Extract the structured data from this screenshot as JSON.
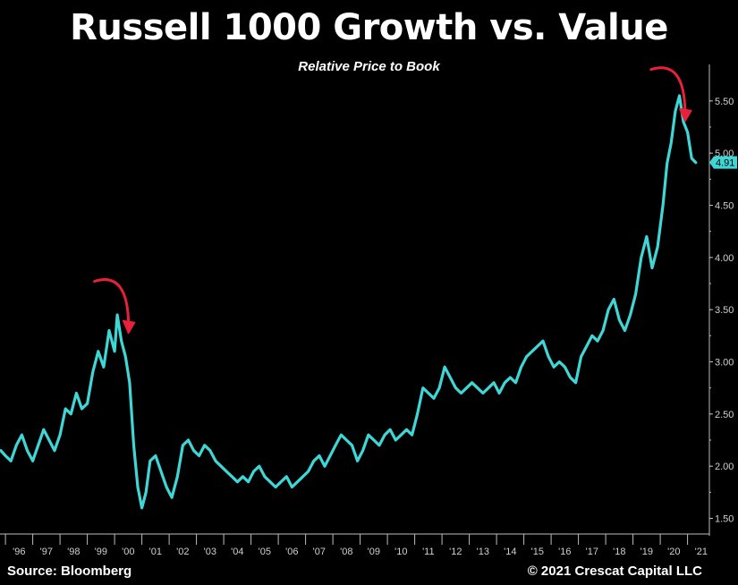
{
  "title": "Russell 1000 Growth vs. Value",
  "subtitle": "Relative Price to Book",
  "footer": {
    "source": "Source: Bloomberg",
    "copyright": "© 2021 Crescat Capital LLC"
  },
  "colors": {
    "background": "#000000",
    "series": "#3fd6d6",
    "arrow": "#e8203a",
    "text": "#ffffff",
    "axis": "#bdbdbd"
  },
  "chart_data": {
    "type": "line",
    "title": "Russell 1000 Growth vs. Value",
    "subtitle": "Relative Price to Book",
    "xlabel": "",
    "ylabel": "",
    "xlim": [
      1995.8,
      2021.8
    ],
    "ylim": [
      1.35,
      5.85
    ],
    "x_ticks": [
      "'96",
      "'97",
      "'98",
      "'99",
      "'00",
      "'01",
      "'02",
      "'03",
      "'04",
      "'05",
      "'06",
      "'07",
      "'08",
      "'09",
      "'10",
      "'11",
      "'12",
      "'13",
      "'14",
      "'15",
      "'16",
      "'17",
      "'18",
      "'19",
      "'20",
      "'21"
    ],
    "y_ticks": [
      "1.50",
      "2.00",
      "2.50",
      "3.00",
      "3.50",
      "4.00",
      "4.50",
      "5.00",
      "5.50"
    ],
    "y_axis_side": "right",
    "grid": false,
    "last_value_label": "4.91",
    "series": [
      {
        "x": [
          1995.83,
          1996.0,
          1996.2,
          1996.4,
          1996.6,
          1996.8,
          1997.0,
          1997.2,
          1997.4,
          1997.6,
          1997.8,
          1998.0,
          1998.2,
          1998.4,
          1998.6,
          1998.8,
          1999.0,
          1999.2,
          1999.4,
          1999.6,
          1999.8,
          2000.0,
          2000.1,
          2000.25,
          2000.4,
          2000.55,
          2000.7,
          2000.85,
          2001.0,
          2001.15,
          2001.3,
          2001.5,
          2001.7,
          2001.9,
          2002.1,
          2002.3,
          2002.5,
          2002.7,
          2002.9,
          2003.1,
          2003.3,
          2003.5,
          2003.7,
          2003.9,
          2004.1,
          2004.3,
          2004.5,
          2004.7,
          2004.9,
          2005.1,
          2005.3,
          2005.5,
          2005.7,
          2005.9,
          2006.1,
          2006.3,
          2006.5,
          2006.7,
          2006.9,
          2007.1,
          2007.3,
          2007.5,
          2007.7,
          2007.9,
          2008.1,
          2008.3,
          2008.5,
          2008.7,
          2008.9,
          2009.1,
          2009.3,
          2009.5,
          2009.7,
          2009.9,
          2010.1,
          2010.3,
          2010.5,
          2010.7,
          2010.9,
          2011.1,
          2011.3,
          2011.5,
          2011.7,
          2011.9,
          2012.1,
          2012.3,
          2012.5,
          2012.7,
          2012.9,
          2013.1,
          2013.3,
          2013.5,
          2013.7,
          2013.9,
          2014.1,
          2014.3,
          2014.5,
          2014.7,
          2014.9,
          2015.1,
          2015.3,
          2015.5,
          2015.7,
          2015.9,
          2016.1,
          2016.3,
          2016.5,
          2016.7,
          2016.9,
          2017.1,
          2017.3,
          2017.5,
          2017.7,
          2017.9,
          2018.1,
          2018.3,
          2018.5,
          2018.7,
          2018.9,
          2019.1,
          2019.3,
          2019.5,
          2019.7,
          2019.9,
          2020.1,
          2020.25,
          2020.4,
          2020.55,
          2020.7,
          2020.85,
          2021.0,
          2021.15,
          2021.3
        ],
        "values": [
          2.15,
          2.1,
          2.05,
          2.2,
          2.3,
          2.15,
          2.05,
          2.2,
          2.35,
          2.25,
          2.15,
          2.3,
          2.55,
          2.5,
          2.7,
          2.55,
          2.6,
          2.9,
          3.1,
          2.95,
          3.3,
          3.1,
          3.45,
          3.2,
          3.05,
          2.8,
          2.2,
          1.8,
          1.6,
          1.75,
          2.05,
          2.1,
          1.95,
          1.8,
          1.7,
          1.9,
          2.2,
          2.25,
          2.15,
          2.1,
          2.2,
          2.15,
          2.05,
          2.0,
          1.95,
          1.9,
          1.85,
          1.9,
          1.85,
          1.95,
          2.0,
          1.9,
          1.85,
          1.8,
          1.85,
          1.9,
          1.8,
          1.85,
          1.9,
          1.95,
          2.05,
          2.1,
          2.0,
          2.1,
          2.2,
          2.3,
          2.25,
          2.2,
          2.05,
          2.15,
          2.3,
          2.25,
          2.2,
          2.3,
          2.35,
          2.25,
          2.3,
          2.35,
          2.3,
          2.5,
          2.75,
          2.7,
          2.65,
          2.75,
          2.95,
          2.85,
          2.75,
          2.7,
          2.75,
          2.8,
          2.75,
          2.7,
          2.75,
          2.8,
          2.7,
          2.8,
          2.85,
          2.8,
          2.95,
          3.05,
          3.1,
          3.15,
          3.2,
          3.05,
          2.95,
          3.0,
          2.95,
          2.85,
          2.8,
          3.05,
          3.15,
          3.25,
          3.2,
          3.3,
          3.5,
          3.6,
          3.4,
          3.3,
          3.45,
          3.65,
          4.0,
          4.2,
          3.9,
          4.1,
          4.5,
          4.9,
          5.1,
          5.4,
          5.55,
          5.3,
          5.2,
          4.95,
          4.91
        ]
      }
    ],
    "annotations": [
      {
        "type": "arrow",
        "description": "down-turn arrow at 2000 peak"
      },
      {
        "type": "arrow",
        "description": "down-turn arrow at 2020-21 peak"
      }
    ]
  }
}
